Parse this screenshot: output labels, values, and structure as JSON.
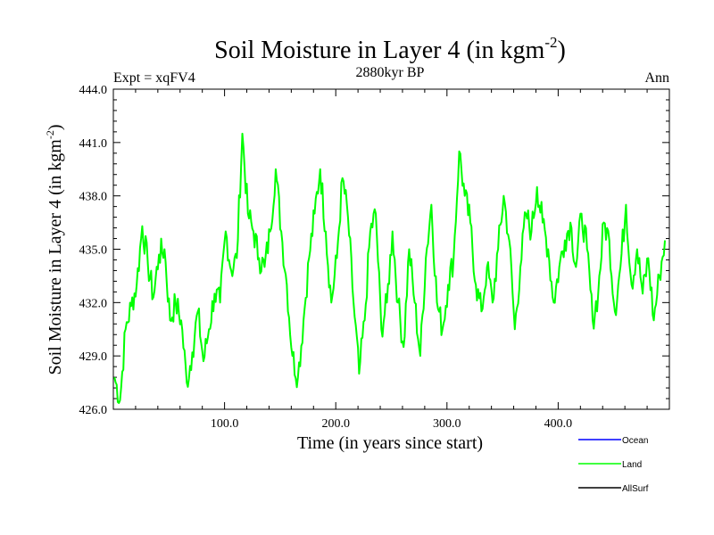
{
  "chart_data": {
    "type": "line",
    "title": "Soil Moisture in Layer 4 (in kgm",
    "title_superscript": "-2",
    "title_suffix": ")",
    "subtitle": "2880kyr BP",
    "left_label": "Expt = xqFV4",
    "right_label": "Ann",
    "xlabel": "Time (in years since start)",
    "ylabel": "Soil Moisture in Layer 4 (in kgm",
    "ylabel_superscript": "-2",
    "ylabel_suffix": ")",
    "xlim": [
      0,
      500
    ],
    "ylim": [
      426.0,
      444.0
    ],
    "x_ticks": [
      100,
      200,
      300,
      400
    ],
    "x_tick_labels": [
      "100.0",
      "200.0",
      "300.0",
      "400.0"
    ],
    "y_ticks": [
      426,
      429,
      432,
      435,
      438,
      441,
      444
    ],
    "y_tick_labels": [
      "426.0",
      "429.0",
      "432.0",
      "435.0",
      "438.0",
      "441.0",
      "444.0"
    ],
    "legend": [
      {
        "name": "Ocean",
        "color": "#0000ff"
      },
      {
        "name": "Land",
        "color": "#00ff00"
      },
      {
        "name": "AllSurf",
        "color": "#000000"
      }
    ],
    "series": [
      {
        "name": "Land",
        "color": "#00ff00",
        "x_start": 1,
        "x_step": 5,
        "values": [
          427.8,
          426.5,
          430.5,
          431.8,
          433.0,
          436.3,
          434.2,
          432.3,
          434.7,
          435.0,
          431.0,
          432.0,
          431.0,
          427.5,
          429.2,
          431.5,
          428.7,
          430.5,
          432.5,
          432.0,
          436.0,
          433.8,
          434.5,
          441.5,
          437.0,
          436.0,
          434.5,
          434.0,
          436.0,
          439.5,
          436.0,
          433.0,
          429.0,
          427.8,
          431.0,
          434.5,
          437.0,
          439.5,
          436.0,
          432.0,
          434.5,
          439.0,
          436.8,
          432.0,
          428.0,
          431.0,
          436.0,
          437.0,
          430.5,
          432.0,
          436.0,
          432.0,
          429.5,
          435.0,
          432.0,
          429.0,
          434.5,
          437.5,
          432.0,
          430.5,
          433.0,
          434.5,
          440.5,
          438.0,
          436.5,
          433.0,
          431.5,
          434.0,
          432.0,
          435.0,
          438.0,
          435.5,
          430.5,
          434.0,
          437.0,
          436.0,
          438.5,
          436.5,
          435.0,
          432.0,
          434.0,
          435.5,
          436.5,
          434.0,
          437.0,
          435.0,
          431.0,
          432.5,
          436.5,
          435.5,
          431.5,
          434.0,
          437.5,
          433.0,
          435.0,
          432.5,
          434.5,
          431.0,
          433.5,
          435.5
        ]
      },
      {
        "name": "Ocean",
        "color": "#0000ff",
        "values": []
      },
      {
        "name": "AllSurf",
        "color": "#000000",
        "values": []
      }
    ]
  }
}
